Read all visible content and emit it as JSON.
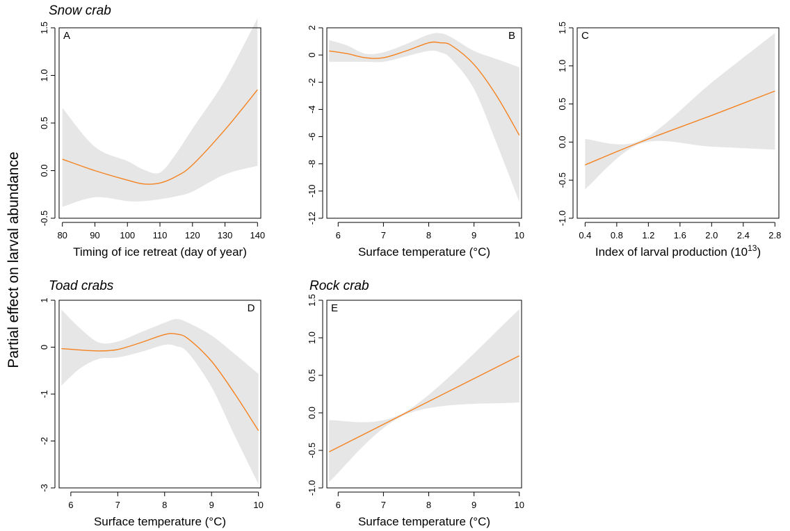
{
  "figure": {
    "y_label": "Partial effect on larval abundance",
    "species": {
      "snow": "Snow crab",
      "toad": "Toad crabs",
      "rock": "Rock crab"
    }
  },
  "colors": {
    "fit_line": "#f5821f",
    "ci_band": "#e6e6e6",
    "axis": "#000000"
  },
  "chart_data": [
    {
      "type": "line",
      "panel": "A",
      "species": "Snow crab",
      "xlabel": "Timing of ice retreat (day of year)",
      "xlabel_sup": "",
      "xlabel_tail": "",
      "xlim": [
        79,
        141
      ],
      "ylim": [
        -0.5,
        1.5
      ],
      "xticks": [
        80,
        90,
        100,
        110,
        120,
        130,
        140
      ],
      "xtick_labels": [
        "80",
        "90",
        "100",
        "110",
        "120",
        "130",
        "140"
      ],
      "yticks": [
        -0.5,
        0,
        0.5,
        1,
        1.5
      ],
      "ytick_labels": [
        "-0.5",
        "0.0",
        "0.5",
        "1.0",
        "1.5"
      ],
      "x": [
        80,
        90,
        100,
        105,
        110,
        115,
        120,
        130,
        140
      ],
      "y": [
        0.12,
        0.0,
        -0.1,
        -0.14,
        -0.13,
        -0.06,
        0.06,
        0.43,
        0.85
      ],
      "lower": [
        -0.38,
        -0.28,
        -0.32,
        -0.32,
        -0.3,
        -0.27,
        -0.22,
        -0.04,
        0.05
      ],
      "upper": [
        0.66,
        0.25,
        0.1,
        0.01,
        -0.02,
        0.18,
        0.44,
        0.95,
        1.6
      ]
    },
    {
      "type": "line",
      "panel": "B",
      "species": "",
      "xlabel": "Surface temperature (°C)",
      "xlabel_sup": "",
      "xlabel_tail": "",
      "xlim": [
        5.75,
        10.05
      ],
      "ylim": [
        -12,
        2
      ],
      "xticks": [
        6,
        7,
        8,
        9,
        10
      ],
      "xtick_labels": [
        "6",
        "7",
        "8",
        "9",
        "10"
      ],
      "yticks": [
        -12,
        -10,
        -8,
        -6,
        -4,
        -2,
        0,
        2
      ],
      "ytick_labels": [
        "-12",
        "-10",
        "-8",
        "-6",
        "-4",
        "-2",
        "0",
        "2"
      ],
      "x": [
        5.8,
        6.2,
        6.6,
        7.0,
        7.5,
        8.0,
        8.25,
        8.5,
        9.0,
        9.5,
        10.0
      ],
      "y": [
        0.3,
        0.1,
        -0.2,
        -0.2,
        0.3,
        0.9,
        0.9,
        0.7,
        -0.7,
        -3.0,
        -5.9
      ],
      "lower": [
        -0.5,
        -0.5,
        -0.5,
        -0.5,
        -0.1,
        0.3,
        0.2,
        -0.3,
        -2.5,
        -6.5,
        -10.8
      ],
      "upper": [
        1.1,
        0.7,
        0.1,
        0.2,
        0.8,
        1.5,
        1.6,
        1.3,
        0.3,
        -0.3,
        -0.9
      ]
    },
    {
      "type": "line",
      "panel": "C",
      "species": "",
      "xlabel": "Index of larval production (10",
      "xlabel_sup": "13",
      "xlabel_tail": ")",
      "xlim": [
        0.3,
        2.85
      ],
      "ylim": [
        -1.0,
        1.5
      ],
      "xticks": [
        0.4,
        0.8,
        1.2,
        1.6,
        2.0,
        2.4,
        2.8
      ],
      "xtick_labels": [
        "0.4",
        "0.8",
        "1.2",
        "1.6",
        "2.0",
        "2.4",
        "2.8"
      ],
      "yticks": [
        -1.0,
        -0.5,
        0,
        0.5,
        1.0,
        1.5
      ],
      "ytick_labels": [
        "-1.0",
        "-0.5",
        "0.0",
        "0.5",
        "1.0",
        "1.5"
      ],
      "x": [
        0.4,
        1.1,
        2.0,
        2.8
      ],
      "y": [
        -0.3,
        0.0,
        0.35,
        0.67
      ],
      "lower": [
        -0.62,
        -0.02,
        -0.06,
        -0.1
      ],
      "upper": [
        0.04,
        0.02,
        0.78,
        1.43
      ]
    },
    {
      "type": "line",
      "panel": "D",
      "species": "Toad crabs",
      "xlabel": "Surface temperature (°C)",
      "xlabel_sup": "",
      "xlabel_tail": "",
      "xlim": [
        5.75,
        10.05
      ],
      "ylim": [
        -3,
        1
      ],
      "xticks": [
        6,
        7,
        8,
        9,
        10
      ],
      "xtick_labels": [
        "6",
        "7",
        "8",
        "9",
        "10"
      ],
      "yticks": [
        -3,
        -2,
        -1,
        0,
        1
      ],
      "ytick_labels": [
        "-3",
        "-2",
        "-1",
        "0",
        "1"
      ],
      "x": [
        5.8,
        6.2,
        6.6,
        7.0,
        7.5,
        8.0,
        8.25,
        8.5,
        9.0,
        9.5,
        10.0
      ],
      "y": [
        -0.03,
        -0.06,
        -0.08,
        -0.05,
        0.1,
        0.27,
        0.28,
        0.18,
        -0.3,
        -1.0,
        -1.78
      ],
      "lower": [
        -0.82,
        -0.45,
        -0.25,
        -0.22,
        -0.1,
        0.05,
        0.02,
        -0.12,
        -0.85,
        -1.9,
        -2.92
      ],
      "upper": [
        0.8,
        0.4,
        0.1,
        0.12,
        0.32,
        0.52,
        0.6,
        0.52,
        0.25,
        -0.15,
        -0.57
      ]
    },
    {
      "type": "line",
      "panel": "E",
      "species": "Rock crab",
      "xlabel": "Surface temperature (°C)",
      "xlabel_sup": "",
      "xlabel_tail": "",
      "xlim": [
        5.75,
        10.05
      ],
      "ylim": [
        -1.0,
        1.5
      ],
      "xticks": [
        6,
        7,
        8,
        9,
        10
      ],
      "xtick_labels": [
        "6",
        "7",
        "8",
        "9",
        "10"
      ],
      "yticks": [
        -1.0,
        -0.5,
        0,
        0.5,
        1.0,
        1.5
      ],
      "ytick_labels": [
        "-1.0",
        "-0.5",
        "0.0",
        "0.5",
        "1.0",
        "1.5"
      ],
      "x": [
        5.8,
        7.5,
        10.0
      ],
      "y": [
        -0.52,
        0.0,
        0.76
      ],
      "lower": [
        -0.92,
        -0.02,
        0.14
      ],
      "upper": [
        -0.1,
        0.02,
        1.38
      ]
    }
  ]
}
